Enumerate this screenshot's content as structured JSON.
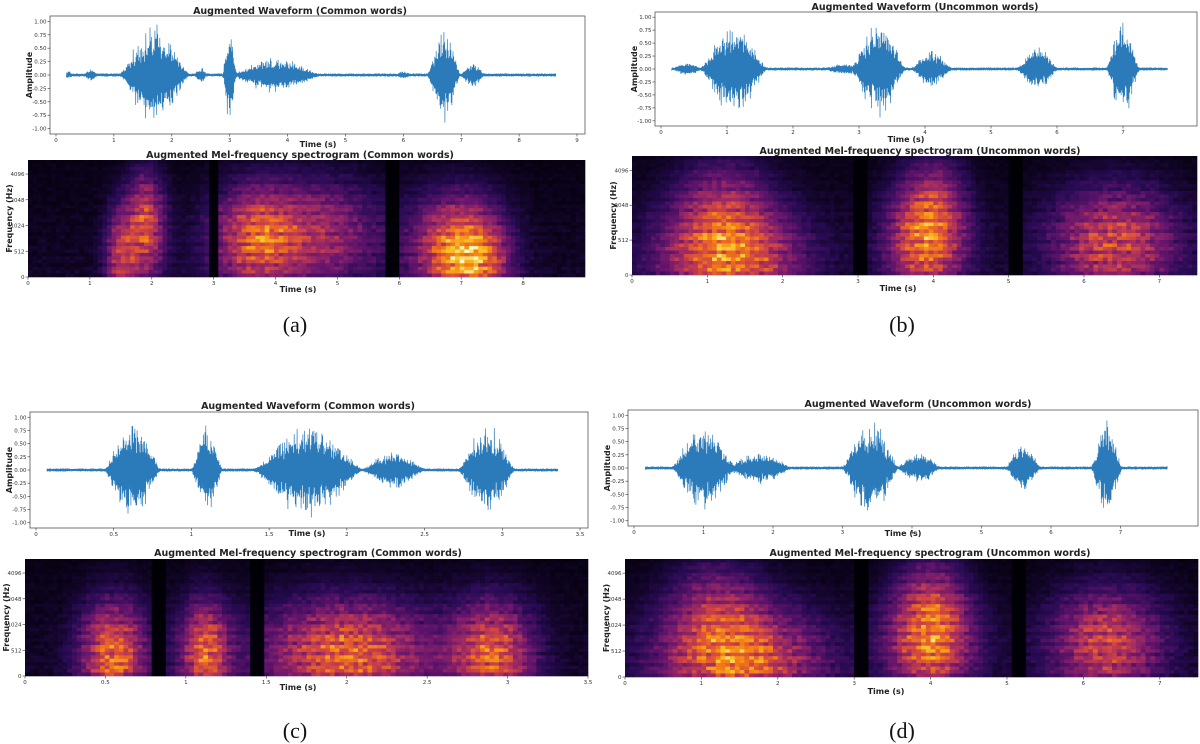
{
  "panels": [
    {
      "label": "(a)",
      "waveform": {
        "title": "Augmented Waveform (Common words)",
        "xlabel": "Time (s)",
        "ylabel": "Amplitude",
        "xlim": [
          0,
          9
        ],
        "ylim": [
          -1.1,
          1.1
        ],
        "xticks": [
          "0",
          "1",
          "2",
          "3",
          "4",
          "5",
          "6",
          "7",
          "8",
          "9"
        ],
        "yticks": [
          "1.00",
          "0.75",
          "0.50",
          "0.25",
          "0.00",
          "-0.25",
          "-0.50",
          "-0.75",
          "-1.00"
        ],
        "bursts": [
          [
            0.2,
            0.08,
            0.05
          ],
          [
            0.6,
            0.1,
            0.1
          ],
          [
            1.7,
            0.6,
            0.92
          ],
          [
            2.5,
            0.1,
            0.12
          ],
          [
            3.0,
            0.12,
            0.9
          ],
          [
            3.8,
            0.75,
            0.32
          ],
          [
            6.0,
            0.1,
            0.05
          ],
          [
            6.7,
            0.28,
            0.92
          ],
          [
            7.2,
            0.2,
            0.22
          ]
        ]
      },
      "spectrogram": {
        "title": "Augmented Mel-frequency spectrogram (Common words)",
        "xlabel": "Time (s)",
        "ylabel": "Frequency (Hz)",
        "xlim": [
          0,
          9
        ],
        "xticks": [
          "0",
          "1",
          "2",
          "3",
          "4",
          "5",
          "6",
          "7",
          "8"
        ],
        "yticks": [
          "0",
          "512",
          "1024",
          "2048",
          "4096"
        ],
        "gaps": [
          3.0,
          5.9
        ],
        "blobs": [
          [
            1.9,
            0.5,
            0.3,
            0.95
          ],
          [
            1.5,
            0.2,
            0.25,
            0.6
          ],
          [
            3.7,
            0.4,
            0.7,
            0.9
          ],
          [
            4.8,
            0.45,
            0.9,
            0.6
          ],
          [
            6.8,
            0.3,
            0.6,
            0.8
          ],
          [
            7.3,
            0.2,
            0.5,
            0.7
          ]
        ]
      }
    },
    {
      "label": "(b)",
      "waveform": {
        "title": "Augmented Waveform (Uncommon words)",
        "xlabel": "Time (s)",
        "ylabel": "Amplitude",
        "xlim": [
          0,
          8
        ],
        "ylim": [
          -1.1,
          1.1
        ],
        "xticks": [
          "0",
          "1",
          "2",
          "3",
          "4",
          "5",
          "6",
          "7"
        ],
        "yticks": [
          "1.00",
          "0.75",
          "0.50",
          "0.25",
          "0.00",
          "-0.25",
          "-0.50",
          "-0.75",
          "-1.00"
        ],
        "bursts": [
          [
            1.1,
            0.5,
            0.88
          ],
          [
            0.4,
            0.2,
            0.1
          ],
          [
            3.3,
            0.4,
            0.95
          ],
          [
            4.1,
            0.3,
            0.35
          ],
          [
            5.7,
            0.3,
            0.45
          ],
          [
            7.0,
            0.25,
            0.92
          ],
          [
            2.8,
            0.3,
            0.08
          ]
        ]
      },
      "spectrogram": {
        "title": "Augmented Mel-frequency spectrogram (Uncommon words)",
        "xlabel": "Time (s)",
        "ylabel": "Frequency (Hz)",
        "xlim": [
          0,
          7.5
        ],
        "xticks": [
          "0",
          "1",
          "2",
          "3",
          "4",
          "5",
          "6",
          "7"
        ],
        "yticks": [
          "0",
          "512",
          "2048",
          "4096"
        ],
        "gaps": [
          3.05,
          5.1
        ],
        "blobs": [
          [
            1.3,
            0.2,
            0.9,
            0.85
          ],
          [
            1.2,
            0.65,
            0.6,
            0.55
          ],
          [
            3.9,
            0.35,
            0.5,
            0.9
          ],
          [
            4.0,
            0.7,
            0.4,
            0.5
          ],
          [
            6.4,
            0.35,
            0.8,
            0.8
          ]
        ]
      }
    },
    {
      "label": "(c)",
      "waveform": {
        "title": "Augmented Waveform (Common words)",
        "xlabel": "Time (s)",
        "ylabel": "Amplitude",
        "xlim": [
          0,
          3.5
        ],
        "ylim": [
          -1.1,
          1.1
        ],
        "xticks": [
          "0",
          "0.5",
          "1",
          "1.5",
          "2",
          "2.5",
          "3",
          "3.5"
        ],
        "yticks": [
          "1.00",
          "0.75",
          "0.50",
          "0.25",
          "0.00",
          "-0.25",
          "-0.50",
          "-0.75",
          "-1.00"
        ],
        "bursts": [
          [
            0.62,
            0.18,
            0.95
          ],
          [
            1.1,
            0.1,
            0.85
          ],
          [
            1.75,
            0.35,
            0.9
          ],
          [
            2.3,
            0.2,
            0.35
          ],
          [
            2.9,
            0.18,
            0.9
          ]
        ]
      },
      "spectrogram": {
        "title": "Augmented Mel-frequency spectrogram (Common words)",
        "xlabel": "Time (s)",
        "ylabel": "Frequency (Hz)",
        "xlim": [
          0,
          3.5
        ],
        "xticks": [
          "0",
          "0.5",
          "1",
          "1.5",
          "2",
          "2.5",
          "3",
          "3.5"
        ],
        "yticks": [
          "0",
          "512",
          "1024",
          "2048",
          "4096"
        ],
        "gaps": [
          0.82,
          1.44
        ],
        "blobs": [
          [
            0.55,
            0.25,
            0.2,
            0.9
          ],
          [
            1.12,
            0.25,
            0.15,
            0.85
          ],
          [
            2.0,
            0.25,
            0.5,
            0.9
          ],
          [
            2.9,
            0.25,
            0.25,
            0.85
          ]
        ]
      }
    },
    {
      "label": "(d)",
      "waveform": {
        "title": "Augmented Waveform (Uncommon words)",
        "xlabel": "Time (s)",
        "ylabel": "Amplitude",
        "xlim": [
          0,
          8
        ],
        "ylim": [
          -1.1,
          1.1
        ],
        "xticks": [
          "0",
          "1",
          "2",
          "3",
          "4",
          "5",
          "6",
          "7"
        ],
        "yticks": [
          "1.00",
          "0.75",
          "0.50",
          "0.25",
          "0.00",
          "-0.25",
          "-0.50",
          "-0.75",
          "-1.00"
        ],
        "bursts": [
          [
            1.0,
            0.45,
            0.85
          ],
          [
            1.8,
            0.45,
            0.3
          ],
          [
            3.4,
            0.4,
            0.95
          ],
          [
            4.1,
            0.3,
            0.3
          ],
          [
            5.6,
            0.25,
            0.45
          ],
          [
            6.8,
            0.22,
            0.92
          ]
        ]
      },
      "spectrogram": {
        "title": "Augmented Mel-frequency spectrogram (Uncommon words)",
        "xlabel": "Time (s)",
        "ylabel": "Frequency (Hz)",
        "xlim": [
          0,
          7.5
        ],
        "xticks": [
          "0",
          "1",
          "2",
          "3",
          "4",
          "5",
          "6",
          "7"
        ],
        "yticks": [
          "0",
          "512",
          "1024",
          "2048",
          "4096"
        ],
        "gaps": [
          3.1,
          5.15
        ],
        "blobs": [
          [
            1.5,
            0.2,
            1.0,
            0.85
          ],
          [
            1.2,
            0.65,
            0.6,
            0.55
          ],
          [
            4.0,
            0.35,
            0.55,
            0.9
          ],
          [
            4.0,
            0.75,
            0.45,
            0.5
          ],
          [
            6.3,
            0.35,
            0.7,
            0.8
          ]
        ]
      }
    }
  ]
}
